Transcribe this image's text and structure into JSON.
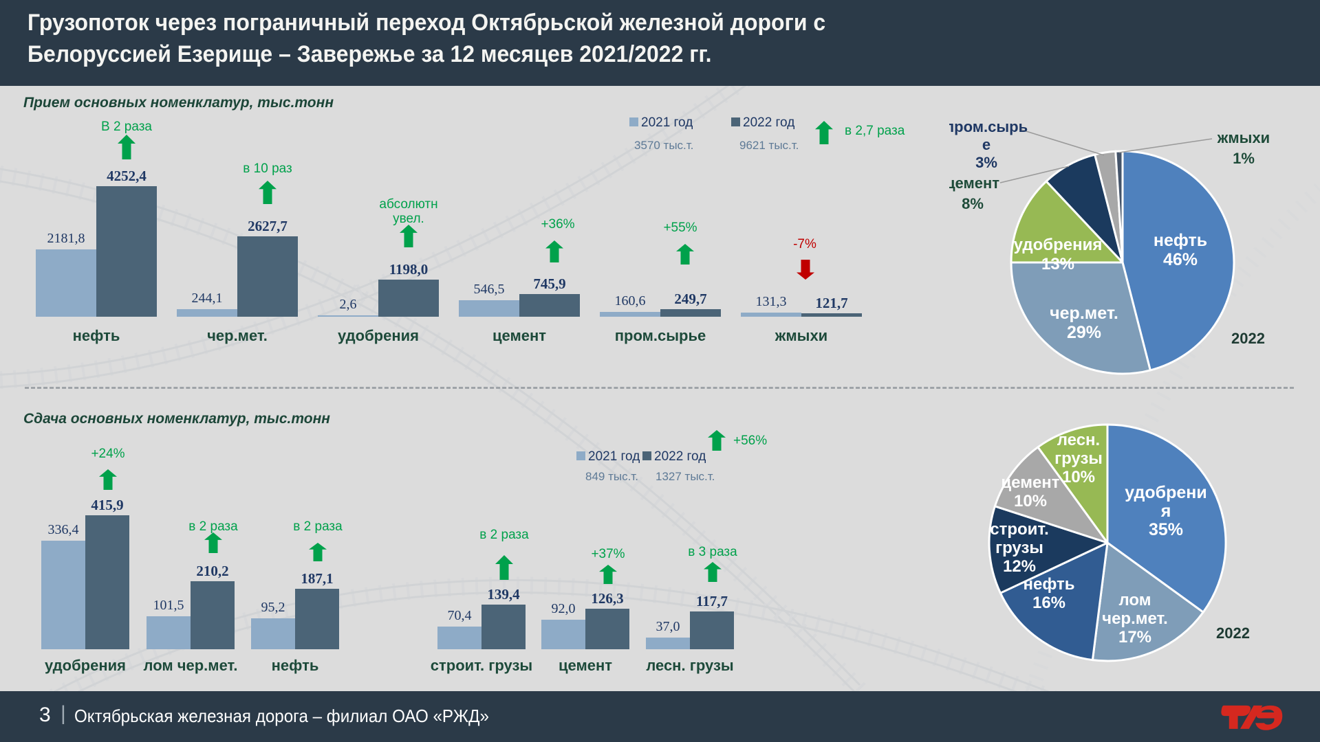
{
  "header": {
    "title_line1": "Грузопоток через пограничный переход Октябрьской железной дороги с",
    "title_line2": "Белоруссией Езерище – Завережье за 12 месяцев 2021/2022 гг."
  },
  "footer": {
    "page_number": "3",
    "separator": "|",
    "text": "Октябрьская железная дорога – филиал ОАО «РЖД»",
    "logo": "РЖД"
  },
  "colors": {
    "header_bg": "#2B3A48",
    "content_bg": "#DCDCDC",
    "bar_2021": "#8EABC7",
    "bar_2022": "#4B6477",
    "value_text": "#1F3864",
    "category_text": "#1D4A3A",
    "positive_green": "#00A14B",
    "negative_red": "#C00000",
    "logo_red": "#D5281F"
  },
  "chart_data": [
    {
      "type": "bar",
      "title": "Прием основных номенклатур, тыс.тонн",
      "legend": [
        {
          "label": "2021 год",
          "total": "3570 тыс.т.",
          "color": "#8EABC7"
        },
        {
          "label": "2022 год",
          "total": "9621 тыс.т.",
          "color": "#4B6477"
        }
      ],
      "legend_note": {
        "text": "в 2,7 раза",
        "direction": "up"
      },
      "categories": [
        "нефть",
        "чер.мет.",
        "удобрения",
        "цемент",
        "пром.сырье",
        "жмыхи"
      ],
      "series": [
        {
          "name": "2021 год",
          "values": [
            2181.8,
            244.1,
            2.6,
            546.5,
            160.6,
            131.3
          ]
        },
        {
          "name": "2022 год",
          "values": [
            4252.4,
            2627.7,
            1198.0,
            745.9,
            249.7,
            121.7
          ]
        }
      ],
      "value_labels": [
        [
          "2181,8",
          "244,1",
          "2,6",
          "546,5",
          "160,6",
          "131,3"
        ],
        [
          "4252,4",
          "2627,7",
          "1198,0",
          "745,9",
          "249,7",
          "121,7"
        ]
      ],
      "annotations": [
        {
          "lines": [
            "В 2 раза"
          ],
          "direction": "up"
        },
        {
          "lines": [
            "в 10 раз"
          ],
          "direction": "up"
        },
        {
          "lines": [
            "абсолютн",
            "увел."
          ],
          "direction": "up"
        },
        {
          "lines": [
            "+36%"
          ],
          "direction": "up"
        },
        {
          "lines": [
            "+55%"
          ],
          "direction": "up"
        },
        {
          "lines": [
            "-7%"
          ],
          "direction": "down"
        }
      ],
      "xlabel": "",
      "ylabel": "",
      "ylim": [
        0,
        4500
      ],
      "grid": false,
      "legend_position": "top-right"
    },
    {
      "type": "pie",
      "year_label": "2022",
      "slices": [
        {
          "label": "нефть",
          "pct": 46,
          "color": "#4F81BD",
          "label_lines": [
            "нефть",
            "46%"
          ],
          "label_position": "inside"
        },
        {
          "label": "чер.мет.",
          "pct": 29,
          "color": "#7F9DB8",
          "label_lines": [
            "чер.мет.",
            "29%"
          ],
          "label_position": "inside"
        },
        {
          "label": "удобрения",
          "pct": 13,
          "color": "#97B954",
          "label_lines": [
            "удобрения",
            "13%"
          ],
          "label_position": "inside"
        },
        {
          "label": "цемент",
          "pct": 8,
          "color": "#1B3A5E",
          "label_lines": [
            "цемент",
            "8%"
          ],
          "label_position": "outside"
        },
        {
          "label": "пром.сырье",
          "pct": 3,
          "color": "#A8A8A8",
          "label_lines": [
            "пром.сырь",
            "е",
            "3%"
          ],
          "label_position": "outside"
        },
        {
          "label": "жмыхи",
          "pct": 1,
          "color": "#44546A",
          "label_lines": [
            "жмыхи",
            "1%"
          ],
          "label_position": "outside"
        }
      ]
    },
    {
      "type": "bar",
      "title": "Сдача основных номенклатур, тыс.тонн",
      "legend": [
        {
          "label": "2021 год",
          "total": "849 тыс.т.",
          "color": "#8EABC7"
        },
        {
          "label": "2022 год",
          "total": "1327 тыс.т.",
          "color": "#4B6477"
        }
      ],
      "legend_note": {
        "text": "+56%",
        "direction": "up"
      },
      "categories": [
        "удобрения",
        "лом чер.мет.",
        "нефть",
        "строит. грузы",
        "цемент",
        "лесн. грузы"
      ],
      "series": [
        {
          "name": "2021 год",
          "values": [
            336.4,
            101.5,
            95.2,
            70.4,
            92.0,
            37.0
          ]
        },
        {
          "name": "2022 год",
          "values": [
            415.9,
            210.2,
            187.1,
            139.4,
            126.3,
            117.7
          ]
        }
      ],
      "value_labels": [
        [
          "336,4",
          "101,5",
          "95,2",
          "70,4",
          "92,0",
          "37,0"
        ],
        [
          "415,9",
          "210,2",
          "187,1",
          "139,4",
          "126,3",
          "117,7"
        ]
      ],
      "annotations": [
        {
          "lines": [
            "+24%"
          ],
          "direction": "up"
        },
        {
          "lines": [
            "в 2 раза"
          ],
          "direction": "up"
        },
        {
          "lines": [
            "в 2 раза"
          ],
          "direction": "up"
        },
        {
          "lines": [
            "в 2 раза"
          ],
          "direction": "up"
        },
        {
          "lines": [
            "+37%"
          ],
          "direction": "up"
        },
        {
          "lines": [
            "в 3 раза"
          ],
          "direction": "up"
        }
      ],
      "xlabel": "",
      "ylabel": "",
      "ylim": [
        0,
        450
      ],
      "grid": false,
      "legend_position": "top-right"
    },
    {
      "type": "pie",
      "year_label": "2022",
      "slices": [
        {
          "label": "удобрения",
          "pct": 35,
          "color": "#4F81BD",
          "label_lines": [
            "удобрени",
            "я",
            "35%"
          ],
          "label_position": "inside"
        },
        {
          "label": "лом чер.мет.",
          "pct": 17,
          "color": "#7F9DB8",
          "label_lines": [
            "лом",
            "чер.мет.",
            "17%"
          ],
          "label_position": "inside"
        },
        {
          "label": "нефть",
          "pct": 16,
          "color": "#315C92",
          "label_lines": [
            "нефть",
            "16%"
          ],
          "label_position": "inside"
        },
        {
          "label": "строит. грузы",
          "pct": 12,
          "color": "#1B3A5E",
          "label_lines": [
            "строит.",
            "грузы",
            "12%"
          ],
          "label_position": "inside"
        },
        {
          "label": "цемент",
          "pct": 10,
          "color": "#A8A8A8",
          "label_lines": [
            "цемент",
            "10%"
          ],
          "label_position": "inside"
        },
        {
          "label": "лесн. грузы",
          "pct": 10,
          "color": "#97B954",
          "label_lines": [
            "лесн.",
            "грузы",
            "10%"
          ],
          "label_position": "inside"
        }
      ]
    }
  ]
}
